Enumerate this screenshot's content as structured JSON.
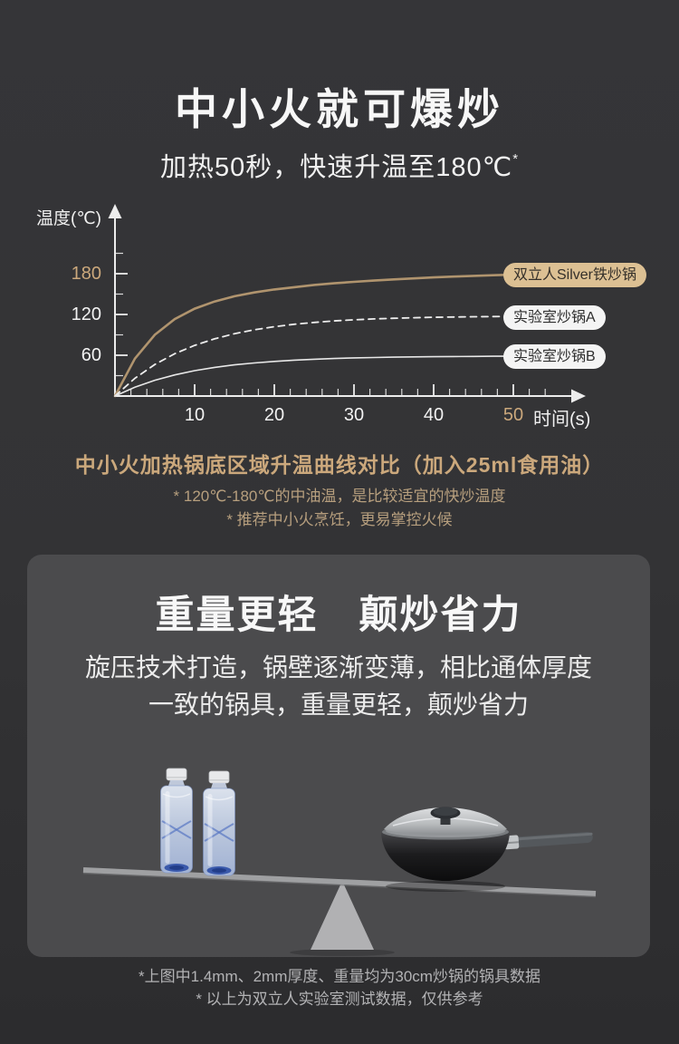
{
  "colors": {
    "page_bg": "#333335",
    "card_bg": "#4B4B4D",
    "accent_gold": "#CBA87C",
    "pill_gold_bg": "#DCC093",
    "curve_gold": "#B0946E",
    "curve_white": "#EDEDED"
  },
  "hero": {
    "title": "中小火就可爆炒",
    "subtitle": "加热50秒，快速升温至180℃",
    "subtitle_sup": "*"
  },
  "chart_notes": {
    "caption": "中小火加热锅底区域升温曲线对比（加入25ml食用油）",
    "footnote1": "* 120℃-180℃的中油温，是比较适宜的快炒温度",
    "footnote2": "* 推荐中小火烹饪，更易掌控火候"
  },
  "chart_data": {
    "type": "line",
    "title": "中小火加热锅底区域升温曲线对比（加入25ml食用油）",
    "xlabel": "时间(s)",
    "ylabel": "温度(℃)",
    "xlim": [
      0,
      50
    ],
    "ylim": [
      0,
      210
    ],
    "grid": false,
    "legend_position": "right",
    "x_ticks": [
      "10",
      "20",
      "30",
      "40",
      "50"
    ],
    "y_ticks": [
      "180",
      "120",
      "60"
    ],
    "highlight_x_tick": "50",
    "highlight_y_tick": "180",
    "axes": {
      "x_minor": 2,
      "x_major": 10,
      "x_max": 54,
      "y_minor": 30,
      "y_major": 60,
      "y_max": 210
    },
    "x": [
      0,
      2.5,
      5,
      7.5,
      10,
      12.5,
      15,
      17.5,
      20,
      22.5,
      25,
      27.5,
      30,
      32.5,
      35,
      37.5,
      40,
      42.5,
      45,
      47.5,
      50
    ],
    "series": [
      {
        "name": "双立人Silver铁炒锅",
        "color": "#B0946E",
        "style": "solid",
        "width": 2.6,
        "values": [
          0,
          55.1,
          90.2,
          113.2,
          128.5,
          139.1,
          146.8,
          152.4,
          156.8,
          160.2,
          163.4,
          165.9,
          168.0,
          169.9,
          171.6,
          173.1,
          174.5,
          175.7,
          176.8,
          177.7,
          178.6
        ]
      },
      {
        "name": "实验室炒锅A",
        "color": "#EDEDED",
        "style": "dashed",
        "width": 1.8,
        "values": [
          0,
          26.1,
          46.4,
          62.3,
          74.6,
          84.2,
          91.7,
          97.5,
          102.0,
          105.6,
          108.3,
          110.5,
          112.1,
          113.4,
          114.4,
          115.2,
          115.8,
          116.3,
          116.7,
          117.0,
          117.2
        ]
      },
      {
        "name": "实验室炒锅B",
        "color": "#E8E8E8",
        "style": "solid",
        "width": 1.6,
        "values": [
          0,
          13.0,
          23.2,
          31.1,
          37.3,
          42.1,
          45.8,
          48.7,
          51.0,
          52.8,
          54.2,
          55.2,
          56.1,
          56.7,
          57.2,
          57.6,
          57.9,
          58.2,
          58.3,
          58.5,
          58.6
        ]
      }
    ]
  },
  "weight_card": {
    "title": "重量更轻　颠炒省力",
    "subtitle_line1": "旋压技术打造，锅壁逐渐变薄，相比通体厚度",
    "subtitle_line2": "一致的锅具，重量更轻，颠炒省力"
  },
  "footer": {
    "note1": "*上图中1.4mm、2mm厚度、重量均为30cm炒锅的锅具数据",
    "note2": "* 以上为双立人实验室测试数据，仅供参考"
  }
}
